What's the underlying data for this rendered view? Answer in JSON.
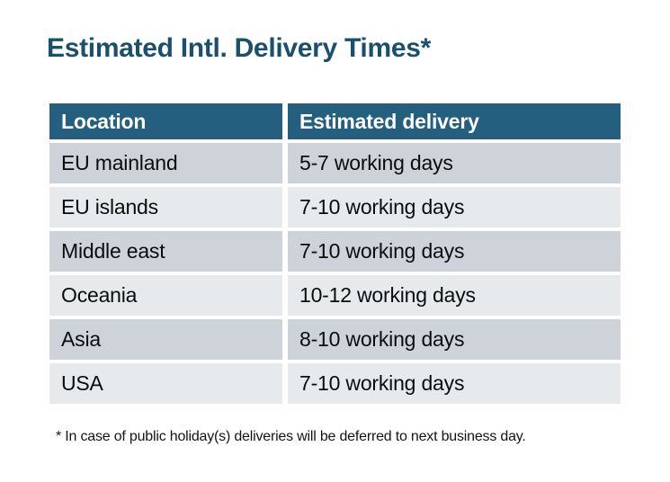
{
  "title": "Estimated Intl. Delivery Times*",
  "table": {
    "columns": [
      "Location",
      "Estimated delivery"
    ],
    "rows": [
      {
        "location": "EU mainland",
        "delivery": "5-7 working days"
      },
      {
        "location": "EU islands",
        "delivery": "7-10 working days"
      },
      {
        "location": "Middle east",
        "delivery": "7-10 working days"
      },
      {
        "location": "Oceania",
        "delivery": "10-12 working days"
      },
      {
        "location": "Asia",
        "delivery": "8-10 working days"
      },
      {
        "location": "USA",
        "delivery": "7-10 working days"
      }
    ]
  },
  "footnote": "* In case of public holiday(s) deliveries will be deferred to next business day.",
  "colors": {
    "header_bg": "#255F80",
    "row_dark": "#CED3D9",
    "row_light": "#E7EAEC",
    "title_text": "#1A506C",
    "cell_text": "#0C0C0C",
    "footnote_text": "#141414"
  }
}
